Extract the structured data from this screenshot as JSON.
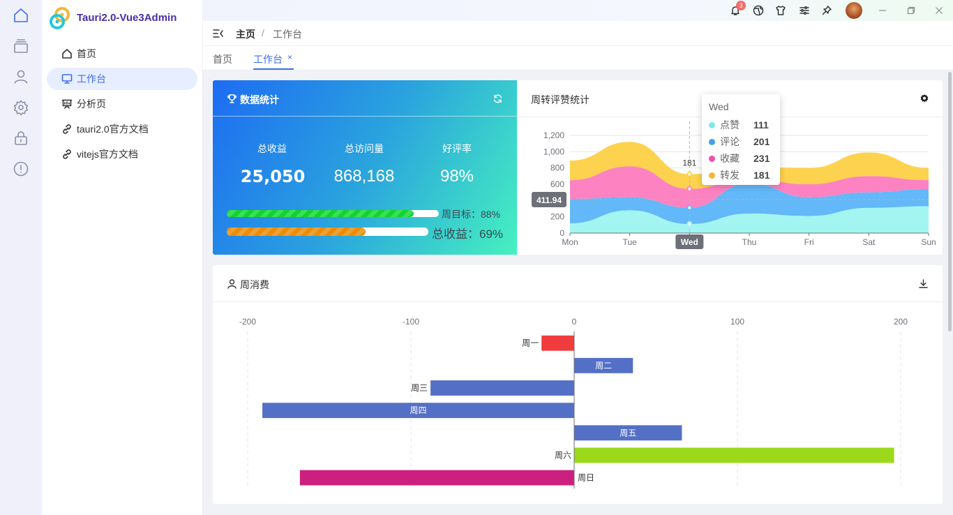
{
  "app": {
    "name": "Tauri2.0-Vue3Admin"
  },
  "sidebar": {
    "items": [
      {
        "label": "首页",
        "icon": "home-icon"
      },
      {
        "label": "工作台",
        "icon": "monitor-icon",
        "active": true
      },
      {
        "label": "分析页",
        "icon": "presentation-icon"
      },
      {
        "label": "tauri2.0官方文档",
        "icon": "link-icon"
      },
      {
        "label": "vitejs官方文档",
        "icon": "link-icon"
      }
    ]
  },
  "topbar": {
    "notification_count": "3"
  },
  "breadcrumb": {
    "home": "主页",
    "separator": "/",
    "current": "工作台"
  },
  "tabs": [
    {
      "label": "首页"
    },
    {
      "label": "工作台",
      "active": true,
      "close": "×"
    }
  ],
  "stats": {
    "title": "数据统计",
    "kpis": [
      {
        "label": "总收益",
        "value": "25,050"
      },
      {
        "label": "总访问量",
        "value": "868,168"
      },
      {
        "label": "好评率",
        "value": "98%"
      }
    ],
    "progress": [
      {
        "label": "周目标：88%",
        "value": 0.88,
        "color": "#12d32c"
      },
      {
        "label": "总收益：69%",
        "value": 0.69,
        "color": "#f08b00"
      }
    ]
  },
  "area_chart": {
    "title": "周转评赞统计",
    "pointer_label": "411.94",
    "axis_highlight": "Wed",
    "tooltip": {
      "title": "Wed",
      "rows": [
        {
          "name": "点赞",
          "value": "111",
          "color": "#80e6e6"
        },
        {
          "name": "评论",
          "value": "201",
          "color": "#3fa0f0"
        },
        {
          "name": "收藏",
          "value": "231",
          "color": "#f050a8"
        },
        {
          "name": "转发",
          "value": "181",
          "color": "#f5b731"
        }
      ]
    }
  },
  "bar_chart": {
    "title": "周消费"
  },
  "chart_data": [
    {
      "type": "area",
      "stacked": true,
      "smooth": true,
      "categories": [
        "Mon",
        "Tue",
        "Wed",
        "Thu",
        "Fri",
        "Sat",
        "Sun"
      ],
      "ylim": [
        0,
        1200
      ],
      "yticks": [
        0,
        200,
        400,
        600,
        800,
        1000,
        1200
      ],
      "series": [
        {
          "name": "点赞",
          "color": "#a3f5f2",
          "values": [
            120,
            280,
            111,
            240,
            210,
            310,
            330
          ]
        },
        {
          "name": "评论",
          "color": "#62b8f8",
          "values": [
            300,
            160,
            201,
            370,
            230,
            190,
            210
          ]
        },
        {
          "name": "收藏",
          "color": "#fd82c2",
          "values": [
            230,
            380,
            231,
            60,
            160,
            200,
            110
          ]
        },
        {
          "name": "转发",
          "color": "#fdd24e",
          "values": [
            240,
            300,
            181,
            140,
            200,
            290,
            150
          ]
        }
      ],
      "data_labels": [
        {
          "category": "Wed",
          "value": "181"
        }
      ]
    },
    {
      "type": "bar",
      "orientation": "horizontal",
      "categories": [
        "周一",
        "周二",
        "周三",
        "周四",
        "周五",
        "周六",
        "周日"
      ],
      "values": [
        -20,
        36,
        -88,
        -191,
        66,
        196,
        -168
      ],
      "colors": [
        "#f03c3c",
        "#5470c6",
        "#5470c6",
        "#5470c6",
        "#5470c6",
        "#9cd91a",
        "#cc2081"
      ],
      "xlim": [
        -200,
        200
      ],
      "xticks": [
        -200,
        -100,
        0,
        100,
        200
      ]
    }
  ]
}
